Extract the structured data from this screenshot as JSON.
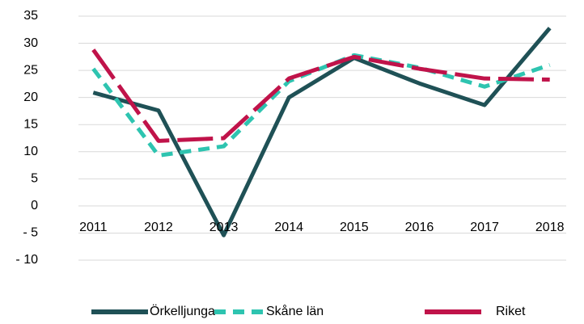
{
  "chart_data": {
    "type": "line",
    "categories": [
      "2011",
      "2012",
      "2013",
      "2014",
      "2015",
      "2016",
      "2017",
      "2018"
    ],
    "series": [
      {
        "name": "Örkelljunga",
        "color": "#1f5156",
        "dash": "solid",
        "values": [
          20.9,
          17.6,
          -5.4,
          20,
          27.3,
          22.6,
          18.6,
          32.8
        ]
      },
      {
        "name": "Skåne län",
        "color": "#2ec4b0",
        "dash": "dash",
        "values": [
          25.3,
          9.3,
          11,
          23,
          27.8,
          25.5,
          22,
          26
        ]
      },
      {
        "name": "Riket",
        "color": "#c0134a",
        "dash": "long-dash",
        "values": [
          28.8,
          12,
          12.5,
          23.5,
          27.5,
          25.3,
          23.5,
          23.3
        ]
      }
    ],
    "ylim": [
      -10,
      35
    ],
    "yticks": [
      {
        "value": -10,
        "label": "- 10"
      },
      {
        "value": -5,
        "label": "- 5"
      },
      0,
      5,
      10,
      15,
      20,
      25,
      30,
      35
    ],
    "grid": true,
    "legend": "bottom"
  }
}
